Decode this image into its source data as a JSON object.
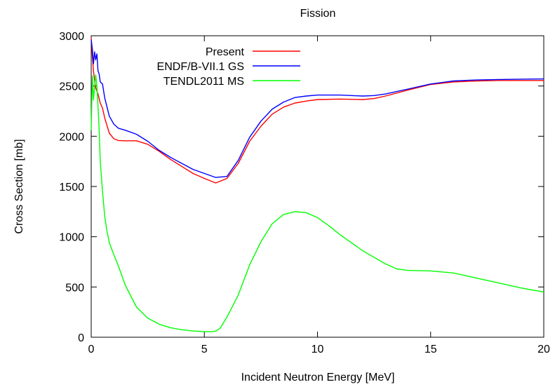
{
  "chart_data": {
    "type": "line",
    "title": "Fission",
    "xlabel": "Incident Neutron Energy [MeV]",
    "ylabel": "Cross Section [mb]",
    "xlim": [
      0,
      20
    ],
    "ylim": [
      0,
      3000
    ],
    "xticks": [
      0,
      5,
      10,
      15,
      20
    ],
    "yticks": [
      0,
      500,
      1000,
      1500,
      2000,
      2500,
      3000
    ],
    "grid": false,
    "legend": "top-right",
    "series": [
      {
        "name": "Present",
        "color": "#ff0000",
        "x": [
          0.0,
          0.05,
          0.1,
          0.15,
          0.2,
          0.3,
          0.4,
          0.5,
          0.6,
          0.8,
          1.0,
          1.2,
          1.5,
          2.0,
          2.5,
          3.0,
          3.5,
          4.0,
          4.5,
          5.0,
          5.5,
          6.0,
          6.5,
          7.0,
          7.5,
          8.0,
          8.5,
          9.0,
          9.5,
          10.0,
          11.0,
          12.0,
          12.5,
          13.0,
          14.0,
          15.0,
          16.0,
          17.0,
          18.0,
          19.0,
          20.0
        ],
        "y": [
          2980,
          2800,
          2650,
          2560,
          2480,
          2420,
          2330,
          2280,
          2180,
          2030,
          1975,
          1958,
          1955,
          1955,
          1920,
          1850,
          1770,
          1700,
          1630,
          1580,
          1535,
          1580,
          1730,
          1950,
          2100,
          2220,
          2290,
          2330,
          2350,
          2365,
          2370,
          2365,
          2375,
          2400,
          2460,
          2515,
          2540,
          2550,
          2555,
          2555,
          2555
        ]
      },
      {
        "name": "ENDF/B-VII.1 GS",
        "color": "#0000ff",
        "x": [
          0.0,
          0.05,
          0.1,
          0.15,
          0.2,
          0.25,
          0.3,
          0.35,
          0.4,
          0.5,
          0.6,
          0.8,
          1.0,
          1.2,
          1.5,
          2.0,
          2.5,
          3.0,
          3.5,
          4.0,
          4.5,
          5.0,
          5.5,
          6.0,
          6.5,
          7.0,
          7.5,
          8.0,
          8.5,
          9.0,
          9.5,
          10.0,
          11.0,
          12.0,
          12.5,
          13.0,
          14.0,
          15.0,
          16.0,
          17.0,
          18.0,
          19.0,
          20.0
        ],
        "y": [
          2960,
          2870,
          2720,
          2840,
          2760,
          2820,
          2650,
          2620,
          2540,
          2520,
          2380,
          2200,
          2120,
          2080,
          2060,
          2020,
          1950,
          1860,
          1790,
          1730,
          1670,
          1630,
          1590,
          1600,
          1760,
          1990,
          2150,
          2270,
          2340,
          2385,
          2400,
          2410,
          2410,
          2400,
          2405,
          2420,
          2470,
          2520,
          2550,
          2560,
          2565,
          2568,
          2570
        ]
      },
      {
        "name": "TENDL2011 MS",
        "color": "#00ff00",
        "x": [
          0.0,
          0.05,
          0.1,
          0.15,
          0.2,
          0.25,
          0.3,
          0.35,
          0.4,
          0.5,
          0.6,
          0.7,
          0.8,
          1.0,
          1.2,
          1.5,
          2.0,
          2.5,
          3.0,
          3.5,
          4.0,
          4.5,
          5.0,
          5.3,
          5.5,
          5.7,
          6.0,
          6.5,
          7.0,
          7.5,
          8.0,
          8.5,
          9.0,
          9.5,
          10.0,
          10.5,
          11.0,
          12.0,
          13.0,
          13.5,
          14.0,
          15.0,
          16.0,
          17.0,
          18.0,
          19.0,
          20.0
        ],
        "y": [
          2060,
          2600,
          2360,
          2490,
          2610,
          2500,
          2300,
          2070,
          1750,
          1450,
          1200,
          1050,
          940,
          820,
          710,
          520,
          300,
          190,
          130,
          95,
          75,
          62,
          55,
          55,
          60,
          90,
          200,
          420,
          720,
          950,
          1130,
          1220,
          1250,
          1240,
          1190,
          1110,
          1020,
          860,
          730,
          680,
          665,
          660,
          640,
          590,
          540,
          490,
          450
        ]
      }
    ]
  }
}
